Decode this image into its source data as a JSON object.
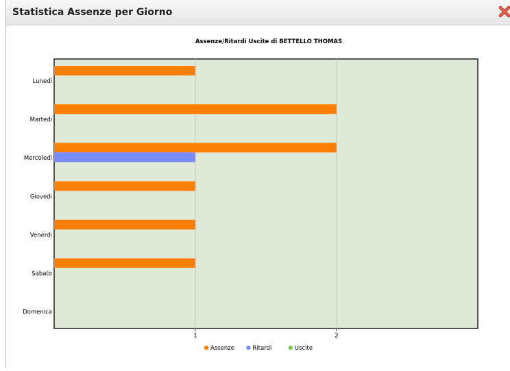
{
  "window": {
    "title": "Statistica Assenze per Giorno",
    "close_icon": "close-icon"
  },
  "colors": {
    "plot_background": "#dfe7d7",
    "assenze": "#ff8000",
    "ritardi": "#7b8cff",
    "uscite": "#7ec850"
  },
  "chart_data": {
    "type": "bar",
    "orientation": "horizontal",
    "title": "Assenze/Ritardi Uscite di BETTELLO THOMAS",
    "xlabel": "",
    "ylabel": "",
    "categories": [
      "Lunedì",
      "Martedì",
      "Mercoledì",
      "Giovedì",
      "Venerdì",
      "Sabato",
      "Domenica"
    ],
    "category_labels": [
      "Lunedi",
      "Martedi",
      "Mercoledi",
      "Giovedi",
      "Venerdi",
      "Sabato",
      "Domenica"
    ],
    "series": [
      {
        "name": "Assenze",
        "values": [
          1,
          2,
          2,
          1,
          1,
          1,
          0
        ]
      },
      {
        "name": "Ritardi",
        "values": [
          0,
          0,
          1,
          0,
          0,
          0,
          0
        ]
      },
      {
        "name": "Uscite",
        "values": [
          0,
          0,
          0,
          0,
          0,
          0,
          0
        ]
      }
    ],
    "x_ticks": [
      "1",
      "2"
    ],
    "xlim": [
      0,
      3
    ],
    "grid": true,
    "legend_position": "bottom"
  }
}
